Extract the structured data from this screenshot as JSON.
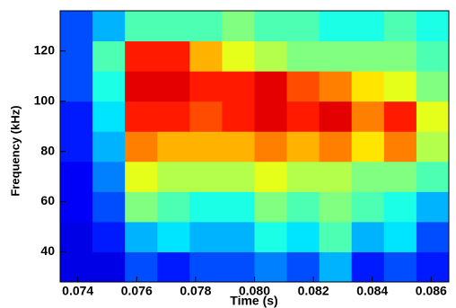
{
  "chart_data": {
    "type": "spectrogram",
    "xlabel": "Time (s)",
    "ylabel": "Frequency (kHz)",
    "xlim": [
      0.0734,
      0.0866
    ],
    "ylim": [
      28,
      136
    ],
    "xticks": [
      0.074,
      0.076,
      0.078,
      {
        "value": 0.08,
        "label": "0.080"
      },
      0.082,
      0.084,
      0.086
    ],
    "yticks": [
      40,
      60,
      80,
      100,
      120
    ],
    "xbins": [
      0.0734,
      0.0745,
      0.0756,
      0.0767,
      0.0778,
      0.0789,
      0.08,
      0.0811,
      0.0822,
      0.0833,
      0.0844,
      0.0855,
      0.0866
    ],
    "ybins": [
      28,
      40,
      52,
      64,
      76,
      88,
      100,
      112,
      124,
      136
    ],
    "colormap": "jet",
    "z": [
      [
        0.1,
        0.1,
        0.2,
        0.15,
        0.2,
        0.2,
        0.25,
        0.2,
        0.3,
        0.15,
        0.2,
        0.15
      ],
      [
        0.1,
        0.15,
        0.3,
        0.35,
        0.3,
        0.3,
        0.4,
        0.35,
        0.45,
        0.3,
        0.35,
        0.2
      ],
      [
        0.12,
        0.2,
        0.5,
        0.45,
        0.4,
        0.4,
        0.5,
        0.45,
        0.5,
        0.45,
        0.4,
        0.3
      ],
      [
        0.12,
        0.25,
        0.6,
        0.55,
        0.55,
        0.55,
        0.6,
        0.55,
        0.55,
        0.5,
        0.5,
        0.45
      ],
      [
        0.15,
        0.3,
        0.75,
        0.7,
        0.7,
        0.7,
        0.75,
        0.7,
        0.75,
        0.65,
        0.75,
        0.55
      ],
      [
        0.15,
        0.35,
        0.85,
        0.85,
        0.8,
        0.85,
        0.9,
        0.85,
        0.9,
        0.75,
        0.85,
        0.6
      ],
      [
        0.2,
        0.4,
        0.9,
        0.9,
        0.85,
        0.85,
        0.9,
        0.8,
        0.75,
        0.65,
        0.6,
        0.5
      ],
      [
        0.2,
        0.45,
        0.85,
        0.85,
        0.7,
        0.6,
        0.55,
        0.5,
        0.5,
        0.5,
        0.5,
        0.45
      ],
      [
        0.2,
        0.3,
        0.45,
        0.45,
        0.45,
        0.5,
        0.45,
        0.45,
        0.4,
        0.4,
        0.45,
        0.4
      ]
    ]
  }
}
